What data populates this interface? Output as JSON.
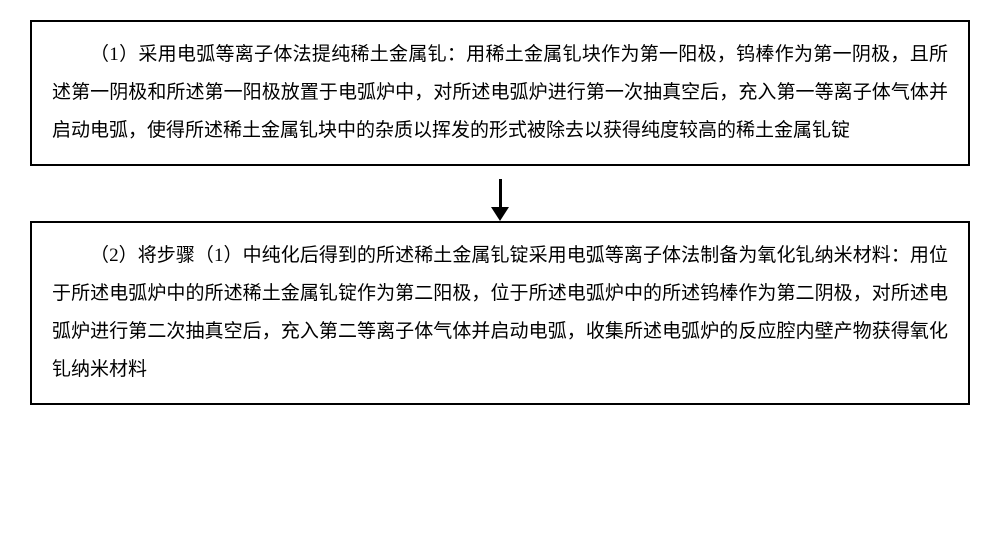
{
  "diagram": {
    "type": "flowchart",
    "nodes": [
      {
        "id": "step1",
        "text": "（1）采用电弧等离子体法提纯稀土金属钆：用稀土金属钆块作为第一阳极，钨棒作为第一阴极，且所述第一阴极和所述第一阳极放置于电弧炉中，对所述电弧炉进行第一次抽真空后，充入第一等离子体气体并启动电弧，使得所述稀土金属钆块中的杂质以挥发的形式被除去以获得纯度较高的稀土金属钆锭"
      },
      {
        "id": "step2",
        "text": "（2）将步骤（1）中纯化后得到的所述稀土金属钆锭采用电弧等离子体法制备为氧化钆纳米材料：用位于所述电弧炉中的所述稀土金属钆锭作为第二阳极，位于所述电弧炉中的所述钨棒作为第二阴极，对所述电弧炉进行第二次抽真空后，充入第二等离子体气体并启动电弧，收集所述电弧炉的反应腔内壁产物获得氧化钆纳米材料"
      }
    ],
    "edges": [
      {
        "from": "step1",
        "to": "step2",
        "style": "arrow"
      }
    ],
    "style": {
      "border_color": "#000000",
      "border_width": 2,
      "background_color": "#ffffff",
      "text_color": "#000000",
      "font_size": 19,
      "line_height": 2.0,
      "font_family": "SimSun",
      "arrow_color": "#000000",
      "arrow_width": 3
    }
  }
}
